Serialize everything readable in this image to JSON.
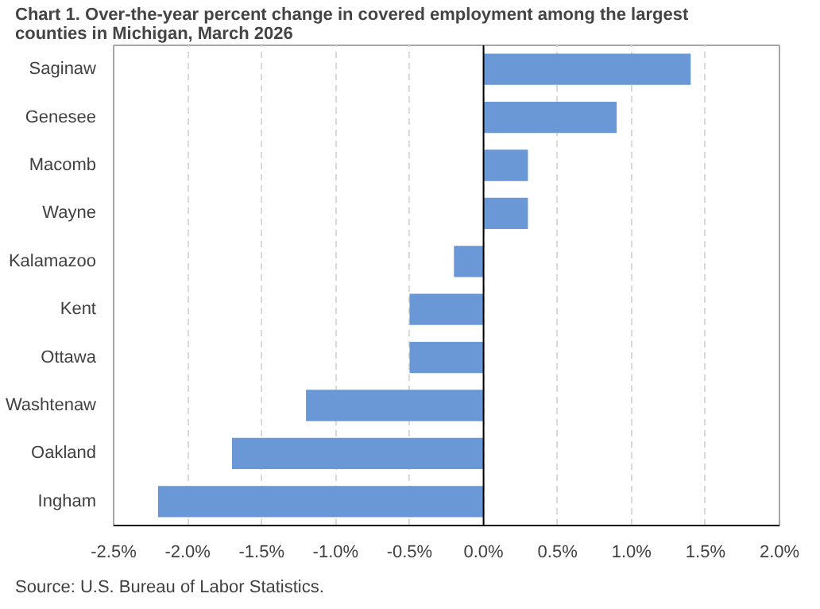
{
  "chart_data": {
    "type": "bar",
    "orientation": "horizontal",
    "title": "Chart 1. Over-the-year percent change in covered employment among the largest counties in Michigan, March 2026",
    "categories": [
      "Saginaw",
      "Genesee",
      "Macomb",
      "Wayne",
      "Kalamazoo",
      "Kent",
      "Ottawa",
      "Washtenaw",
      "Oakland",
      "Ingham"
    ],
    "values": [
      1.4,
      0.9,
      0.3,
      0.3,
      -0.2,
      -0.5,
      -0.5,
      -1.2,
      -1.7,
      -2.2
    ],
    "color": "#6a98d6",
    "xlim": [
      -2.5,
      2.0
    ],
    "xticks": [
      {
        "value": -2.5,
        "label": "-2.5%"
      },
      {
        "value": -2.0,
        "label": "-2.0%"
      },
      {
        "value": -1.5,
        "label": "-1.5%"
      },
      {
        "value": -1.0,
        "label": "-1.0%"
      },
      {
        "value": -0.5,
        "label": "-0.5%"
      },
      {
        "value": 0.0,
        "label": "0.0%"
      },
      {
        "value": 0.5,
        "label": "0.5%"
      },
      {
        "value": 1.0,
        "label": "1.0%"
      },
      {
        "value": 1.5,
        "label": "1.5%"
      },
      {
        "value": 2.0,
        "label": "2.0%"
      }
    ],
    "grid": "x",
    "annotations": [
      "Source: U.S. Bureau of Labor Statistics."
    ]
  }
}
